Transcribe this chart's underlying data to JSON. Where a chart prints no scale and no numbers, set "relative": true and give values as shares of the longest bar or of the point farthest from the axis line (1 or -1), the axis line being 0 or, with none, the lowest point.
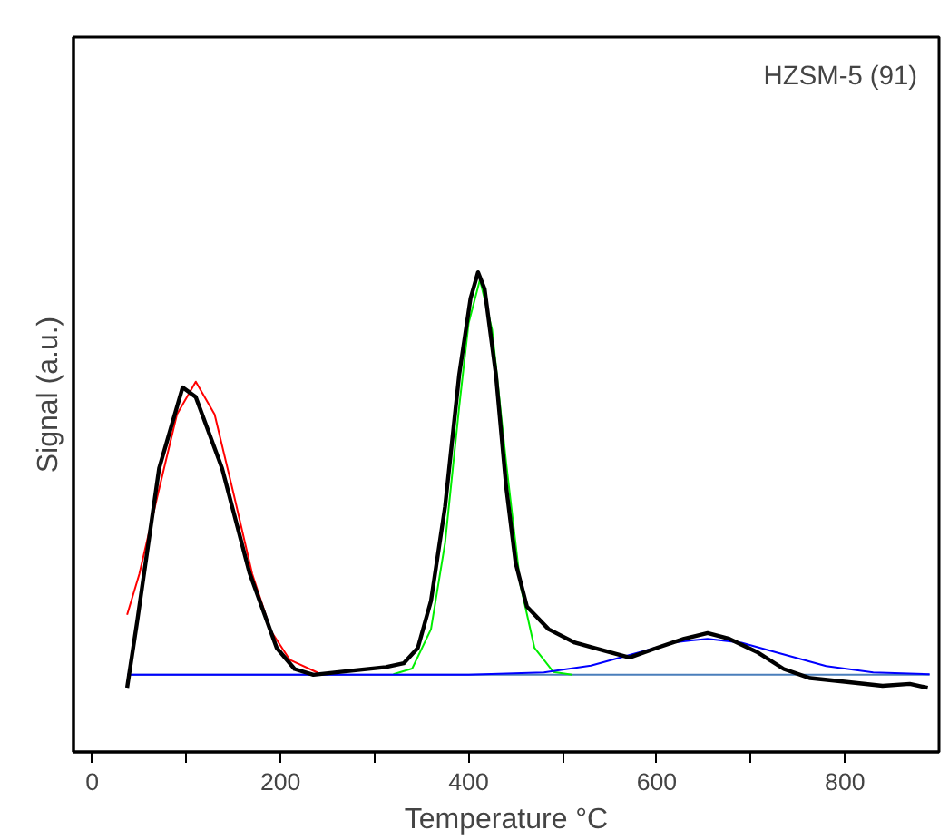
{
  "chart_data": {
    "type": "line",
    "relative": true,
    "xlabel": "Temperature °C",
    "ylabel": "Signal (a.u.)",
    "annotations": [
      "HZSM-5 (91)"
    ],
    "xlim": [
      -20,
      900
    ],
    "xticks": [
      0,
      {
        "value": 100,
        "label": null
      },
      200,
      {
        "value": 300,
        "label": null
      },
      400,
      {
        "value": 500,
        "label": null
      },
      600,
      {
        "value": 700,
        "label": null
      },
      800
    ],
    "grid": false,
    "marker": "none",
    "line_style": "solid",
    "series": [
      {
        "color": "#4a7ebb",
        "x": [
          37,
          890
        ],
        "values": [
          0.161,
          0.161
        ]
      },
      {
        "color": "#ff0000",
        "x": [
          37,
          50,
          70,
          90,
          110,
          130,
          150,
          170,
          190,
          210,
          240
        ],
        "values": [
          0.286,
          0.371,
          0.54,
          0.704,
          0.772,
          0.704,
          0.54,
          0.371,
          0.252,
          0.192,
          0.165
        ]
      },
      {
        "color": "#00ee00",
        "x": [
          320,
          340,
          360,
          375,
          390,
          400,
          412,
          425,
          440,
          455,
          470,
          490,
          510
        ],
        "values": [
          0.162,
          0.174,
          0.256,
          0.436,
          0.72,
          0.894,
          0.984,
          0.88,
          0.601,
          0.349,
          0.217,
          0.167,
          0.161
        ]
      },
      {
        "color": "#0000ff",
        "x": [
          37,
          400,
          480,
          530,
          580,
          620,
          654,
          690,
          730,
          780,
          830,
          890
        ],
        "values": [
          0.161,
          0.161,
          0.166,
          0.18,
          0.207,
          0.229,
          0.236,
          0.228,
          0.206,
          0.179,
          0.166,
          0.162
        ]
      },
      {
        "color": "#000000",
        "x": [
          37,
          48,
          71,
          96,
          110,
          138,
          167,
          196,
          215,
          235,
          273,
          312,
          331,
          346,
          360,
          375,
          390,
          402,
          410,
          417,
          429,
          440,
          450,
          462,
          485,
          513,
          533,
          571,
          600,
          629,
          654,
          677,
          706,
          735,
          763,
          802,
          840,
          869,
          888
        ],
        "values": [
          0.134,
          0.276,
          0.591,
          0.76,
          0.74,
          0.591,
          0.374,
          0.217,
          0.173,
          0.161,
          0.169,
          0.177,
          0.185,
          0.217,
          0.315,
          0.512,
          0.787,
          0.945,
          1.0,
          0.965,
          0.787,
          0.551,
          0.394,
          0.303,
          0.256,
          0.228,
          0.217,
          0.197,
          0.217,
          0.236,
          0.248,
          0.236,
          0.209,
          0.173,
          0.154,
          0.146,
          0.138,
          0.142,
          0.134
        ]
      }
    ]
  }
}
